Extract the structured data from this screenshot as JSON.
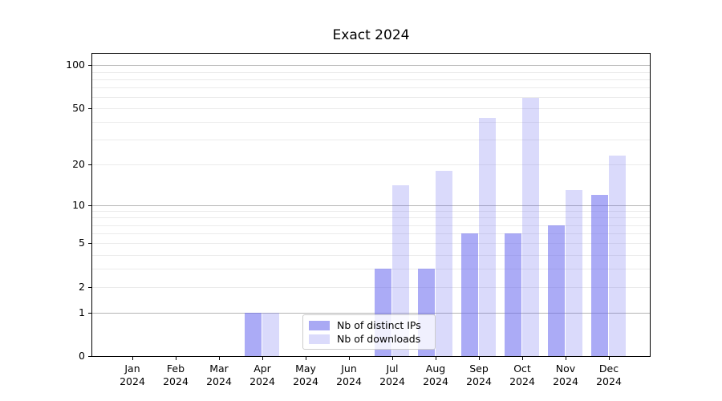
{
  "title": "Exact 2024",
  "legend": {
    "items": [
      {
        "label": "Nb of distinct IPs",
        "swatch_color": "#a9a9f4"
      },
      {
        "label": "Nb of downloads",
        "swatch_color": "#dbdbfb"
      }
    ]
  },
  "chart_data": {
    "type": "bar",
    "title": "Exact 2024",
    "categories": [
      "Jan 2024",
      "Feb 2024",
      "Mar 2024",
      "Apr 2024",
      "May 2024",
      "Jun 2024",
      "Jul 2024",
      "Aug 2024",
      "Sep 2024",
      "Oct 2024",
      "Nov 2024",
      "Dec 2024"
    ],
    "series": [
      {
        "name": "Nb of distinct IPs",
        "color": "rgba(102,102,238,0.55)",
        "values": [
          0,
          0,
          0,
          1,
          0,
          0,
          3,
          3,
          6,
          6,
          7,
          12
        ]
      },
      {
        "name": "Nb of downloads",
        "color": "rgba(102,102,238,0.24)",
        "values": [
          0,
          0,
          0,
          1,
          0,
          0,
          14,
          18,
          43,
          59,
          13,
          23
        ]
      }
    ],
    "xlabel": "",
    "ylabel": "",
    "scale": "log10(1+x)",
    "ylim": [
      0,
      122
    ],
    "y_tick_labels": [
      0,
      1,
      2,
      5,
      10,
      20,
      50,
      100
    ],
    "y_gridlines_major": [
      1,
      10,
      100
    ],
    "y_gridlines_minor": [
      2,
      3,
      4,
      5,
      6,
      7,
      8,
      9,
      20,
      30,
      40,
      50,
      60,
      70,
      80,
      90
    ],
    "grid": "on",
    "legend_position": "lower center"
  }
}
